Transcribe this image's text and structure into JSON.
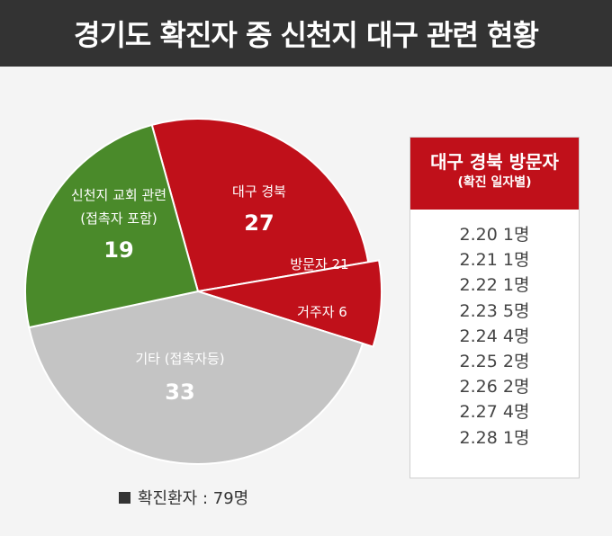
{
  "title": "경기도 확진자 중 신천지 대구 관련 현황",
  "chart_data": {
    "type": "pie",
    "total_label": "확진환자 : 79명",
    "total": 79,
    "slices": [
      {
        "label_lines": [
          "대구 경북"
        ],
        "value": 27,
        "color": "#c0101a"
      },
      {
        "label_lines": [
          "기타 (접촉자등)"
        ],
        "value": 33,
        "color": "#c4c4c4"
      },
      {
        "label_lines": [
          "신천지 교회 관련",
          "(접촉자 포함)"
        ],
        "value": 19,
        "color": "#4a8a2a"
      }
    ],
    "subslices": [
      {
        "label": "방문자 21",
        "value": 21,
        "color": "#c0101a"
      },
      {
        "label": "거주자 6",
        "value": 6,
        "color": "#c0101a"
      }
    ]
  },
  "table": {
    "header": "대구 경북 방문자",
    "subheader": "(확진 일자별)",
    "rows": [
      {
        "date": "2.20",
        "count": "1명"
      },
      {
        "date": "2.21",
        "count": "1명"
      },
      {
        "date": "2.22",
        "count": "1명"
      },
      {
        "date": "2.23",
        "count": "5명"
      },
      {
        "date": "2.24",
        "count": "4명"
      },
      {
        "date": "2.25",
        "count": "2명"
      },
      {
        "date": "2.26",
        "count": "2명"
      },
      {
        "date": "2.27",
        "count": "4명"
      },
      {
        "date": "2.28",
        "count": "1명"
      }
    ]
  }
}
